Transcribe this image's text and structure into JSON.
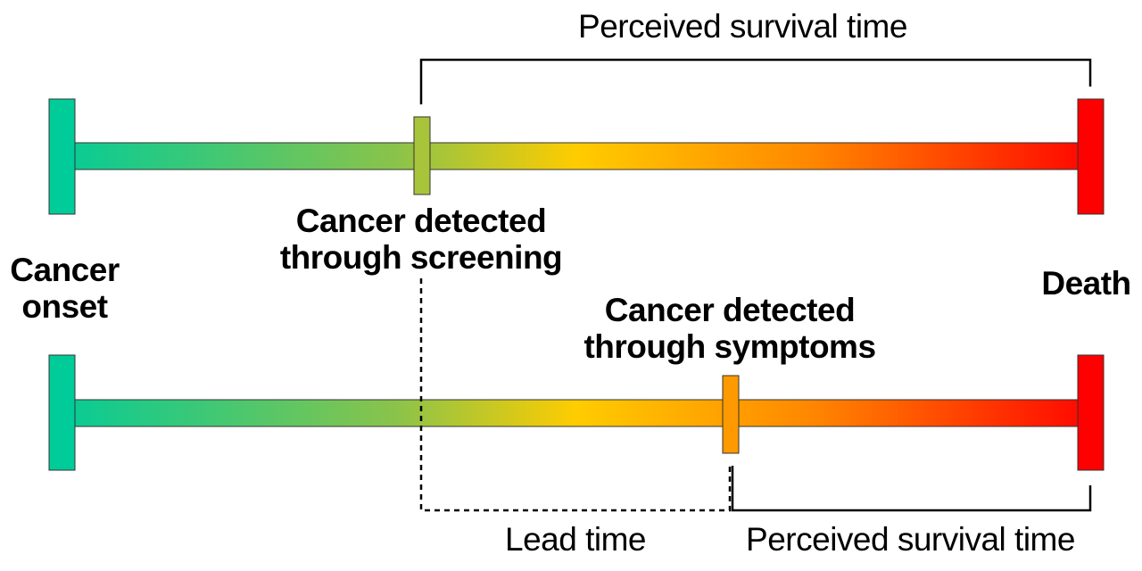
{
  "labels": {
    "perceived_survival_top": "Perceived survival time",
    "detected_screening_line1": "Cancer detected",
    "detected_screening_line2": "through screening",
    "cancer_onset_line1": "Cancer",
    "cancer_onset_line2": "onset",
    "death": "Death",
    "detected_symptoms_line1": "Cancer detected",
    "detected_symptoms_line2": "through symptoms",
    "lead_time": "Lead time",
    "perceived_survival_bottom": "Perceived survival time"
  },
  "colors": {
    "onset": "#00cc99",
    "mid_green": "#8bc34a",
    "yellow": "#ffcc00",
    "orange": "#ff8800",
    "death": "#ff0000",
    "screening_marker": "#a8c43a",
    "symptoms_marker": "#ff9900",
    "line": "#000000"
  }
}
